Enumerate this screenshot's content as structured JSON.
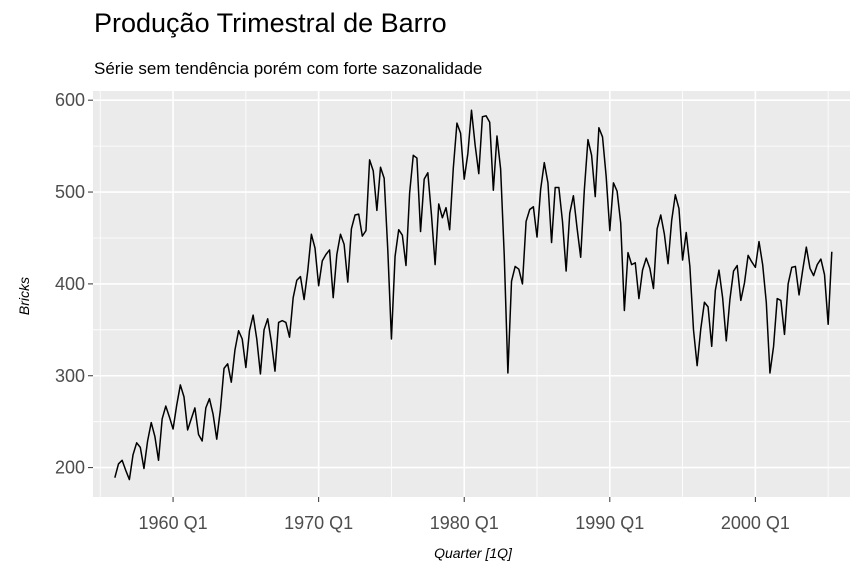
{
  "title": "Produção Trimestral de Barro",
  "subtitle": "Série sem tendência porém com forte sazonalidade",
  "colors": {
    "panel": "#ebebeb",
    "grid": "#ffffff",
    "line": "#000000",
    "tick_text": "#4d4d4d"
  },
  "chart_data": {
    "type": "line",
    "title": "Produção Trimestral de Barro",
    "subtitle": "Série sem tendência porém com forte sazonalidade",
    "xlabel": "Quarter [1Q]",
    "ylabel": "Bricks",
    "x_start": "1956 Q1",
    "x_tick_labels": [
      "1960 Q1",
      "1970 Q1",
      "1980 Q1",
      "1990 Q1",
      "2000 Q1"
    ],
    "y_tick_labels": [
      "200",
      "300",
      "400",
      "500",
      "600"
    ],
    "xlim": [
      "1954 Q3",
      "2006 Q3"
    ],
    "ylim": [
      168,
      610
    ],
    "grid": true,
    "legend": "none",
    "series": [
      {
        "values": [
          189,
          204,
          208,
          197,
          187,
          214,
          227,
          222,
          199,
          229,
          249,
          234,
          208,
          253,
          267,
          255,
          242,
          268,
          290,
          277,
          241,
          253,
          265,
          236,
          229,
          265,
          275,
          258,
          231,
          263,
          308,
          313,
          293,
          328,
          349,
          340,
          309,
          349,
          366,
          340,
          302,
          350,
          362,
          337,
          305,
          358,
          360,
          358,
          342,
          385,
          404,
          408,
          383,
          414,
          454,
          439,
          398,
          425,
          432,
          437,
          385,
          432,
          454,
          443,
          402,
          460,
          475,
          476,
          452,
          458,
          535,
          523,
          480,
          527,
          515,
          437,
          340,
          430,
          459,
          453,
          420,
          499,
          540,
          537,
          457,
          514,
          521,
          475,
          421,
          487,
          472,
          483,
          459,
          526,
          575,
          564,
          514,
          542,
          589,
          551,
          520,
          582,
          583,
          576,
          502,
          561,
          525,
          431,
          303,
          403,
          419,
          416,
          400,
          468,
          481,
          484,
          451,
          503,
          532,
          510,
          445,
          505,
          505,
          468,
          414,
          477,
          496,
          461,
          429,
          502,
          557,
          540,
          495,
          570,
          560,
          517,
          458,
          510,
          501,
          466,
          371,
          434,
          421,
          423,
          384,
          415,
          428,
          417,
          395,
          460,
          475,
          454,
          422,
          469,
          497,
          482,
          426,
          456,
          419,
          350,
          311,
          351,
          380,
          375,
          332,
          393,
          415,
          385,
          338,
          383,
          414,
          420,
          382,
          401,
          431,
          424,
          418,
          446,
          421,
          380,
          303,
          332,
          384,
          382,
          345,
          400,
          418,
          419,
          388,
          415,
          440,
          417,
          409,
          421,
          427,
          410,
          356,
          435
        ]
      }
    ]
  }
}
